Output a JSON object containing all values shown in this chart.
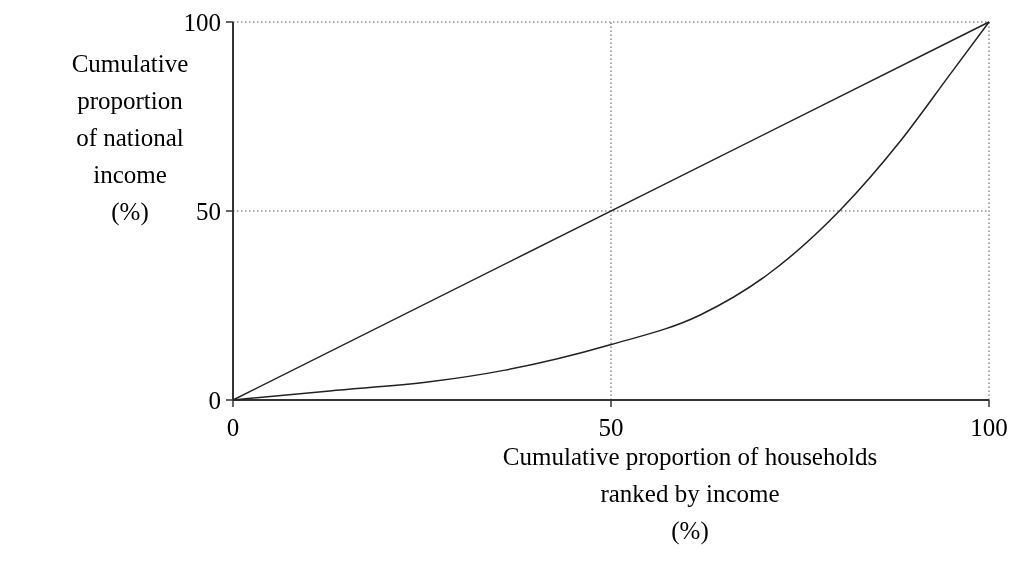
{
  "chart_data": {
    "type": "line",
    "xlabel": "Cumulative proportion of households\nranked by income\n(%)",
    "ylabel": "Cumulative\nproportion\nof national\nincome\n(%)",
    "xlim": [
      0,
      100
    ],
    "ylim": [
      0,
      100
    ],
    "xticks": [
      0,
      50,
      100
    ],
    "yticks": [
      0,
      50,
      100
    ],
    "grid": true,
    "line_style": "solid",
    "series": [
      {
        "color": "#222222",
        "x": [
          0,
          100
        ],
        "values": [
          0,
          100
        ]
      },
      {
        "color": "#222222",
        "x": [
          0,
          12.8,
          26,
          36,
          49.9,
          61.8,
          70.6,
          80.3,
          88.2,
          94.8,
          100
        ],
        "values": [
          0,
          2.4,
          4.8,
          7.9,
          14.6,
          22.5,
          33,
          50.2,
          68.3,
          86,
          100
        ]
      }
    ]
  }
}
